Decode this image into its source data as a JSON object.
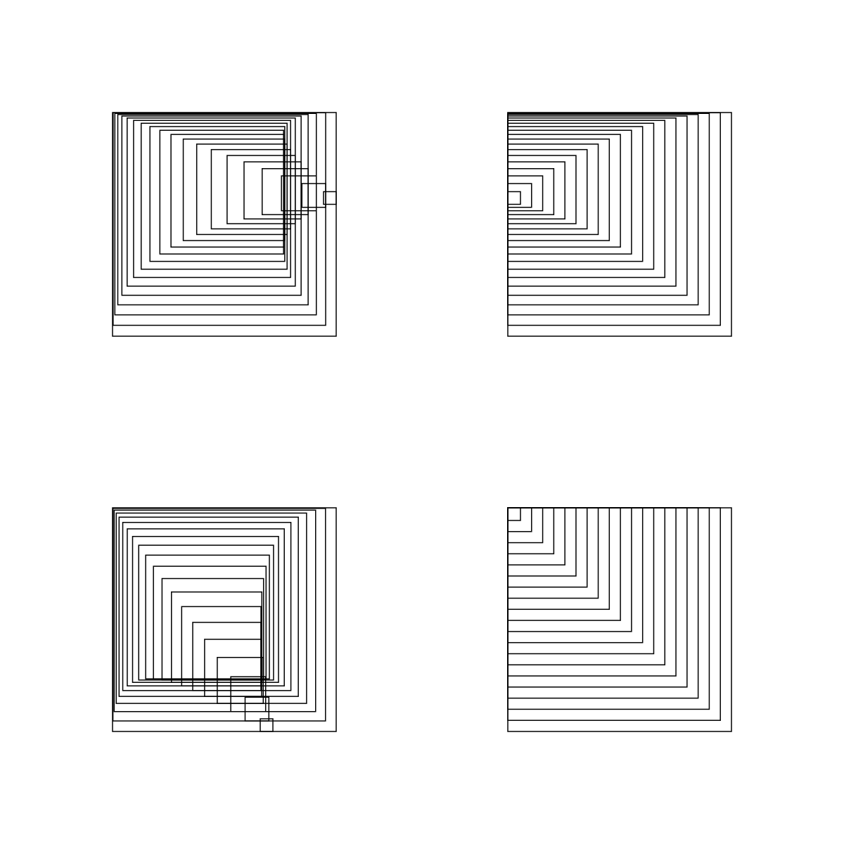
{
  "background": "#ffffff",
  "stroke": "#000000",
  "panels": [
    {
      "name": "nested-squares-converging-right"
    },
    {
      "name": "nested-squares-converging-left"
    },
    {
      "name": "nested-squares-converging-bottom"
    },
    {
      "name": "nested-squares-converging-top-left"
    }
  ]
}
